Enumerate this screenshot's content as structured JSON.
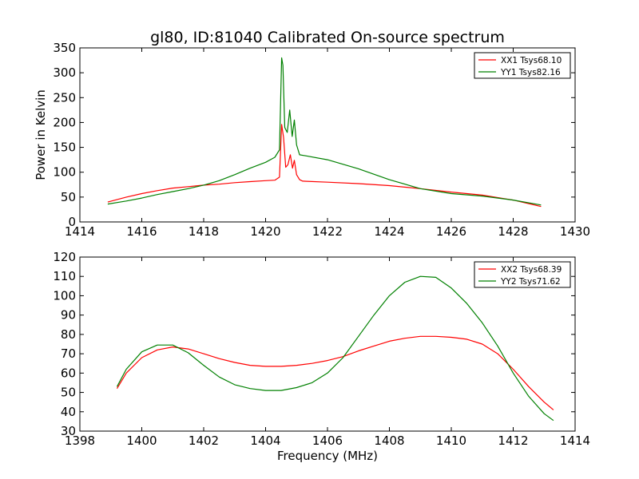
{
  "figure": {
    "title": "gl80, ID:81040 Calibrated On-source spectrum"
  },
  "colors": {
    "series_a": "#ff0000",
    "series_b": "#008000"
  },
  "chart_data": [
    {
      "type": "line",
      "title": "gl80, ID:81040 Calibrated On-source spectrum",
      "xlabel": "",
      "ylabel": "Power in Kelvin",
      "xlim": [
        1414,
        1430
      ],
      "ylim": [
        0,
        350
      ],
      "xticks": [
        1414,
        1416,
        1418,
        1420,
        1422,
        1424,
        1426,
        1428,
        1430
      ],
      "yticks": [
        0,
        50,
        100,
        150,
        200,
        250,
        300,
        350
      ],
      "grid": false,
      "legend": "top-right",
      "series": [
        {
          "name": "XX1 Tsys68.10",
          "color": "#ff0000",
          "x": [
            1414.9,
            1415.5,
            1416,
            1416.5,
            1417,
            1417.5,
            1418,
            1418.5,
            1419,
            1419.5,
            1420,
            1420.3,
            1420.45,
            1420.52,
            1420.58,
            1420.65,
            1420.72,
            1420.8,
            1420.87,
            1420.93,
            1421.0,
            1421.1,
            1421.2,
            1422,
            1423,
            1424,
            1425,
            1426,
            1427,
            1428,
            1428.9
          ],
          "y": [
            40,
            50,
            57,
            63,
            68,
            71,
            74,
            76,
            79,
            81,
            83,
            84,
            90,
            196,
            170,
            110,
            115,
            135,
            108,
            124,
            95,
            85,
            82,
            80,
            77,
            73,
            67,
            60,
            54,
            44,
            31
          ]
        },
        {
          "name": "YY1 Tsys82.16",
          "color": "#008000",
          "x": [
            1414.9,
            1415.5,
            1416,
            1416.5,
            1417,
            1417.5,
            1418,
            1418.5,
            1419,
            1419.5,
            1420,
            1420.3,
            1420.45,
            1420.52,
            1420.56,
            1420.62,
            1420.7,
            1420.78,
            1420.86,
            1420.93,
            1421.0,
            1421.1,
            1421.3,
            1422,
            1423,
            1424,
            1425,
            1426,
            1427,
            1428,
            1428.9
          ],
          "y": [
            36,
            42,
            48,
            55,
            61,
            67,
            74,
            83,
            95,
            108,
            120,
            130,
            145,
            330,
            315,
            190,
            180,
            225,
            172,
            205,
            155,
            135,
            133,
            125,
            107,
            85,
            67,
            57,
            52,
            44,
            34
          ]
        }
      ]
    },
    {
      "type": "line",
      "title": "",
      "xlabel": "Frequency (MHz)",
      "ylabel": "",
      "xlim": [
        1398,
        1414
      ],
      "ylim": [
        30,
        120
      ],
      "xticks": [
        1398,
        1400,
        1402,
        1404,
        1406,
        1408,
        1410,
        1412,
        1414
      ],
      "yticks": [
        30,
        40,
        50,
        60,
        70,
        80,
        90,
        100,
        110,
        120
      ],
      "grid": false,
      "legend": "top-right",
      "series": [
        {
          "name": "XX2 Tsys68.39",
          "color": "#ff0000",
          "x": [
            1399.2,
            1399.5,
            1400,
            1400.5,
            1401,
            1401.5,
            1402,
            1402.5,
            1403,
            1403.5,
            1404,
            1404.5,
            1405,
            1405.5,
            1406,
            1406.5,
            1407,
            1407.5,
            1408,
            1408.5,
            1409,
            1409.5,
            1410,
            1410.5,
            1411,
            1411.5,
            1412,
            1412.5,
            1413,
            1413.3
          ],
          "y": [
            52,
            60,
            68,
            72,
            73.5,
            72.5,
            70,
            67.5,
            65.5,
            64,
            63.5,
            63.5,
            64,
            65,
            66.5,
            68.5,
            71.5,
            74,
            76.5,
            78,
            79,
            79,
            78.5,
            77.5,
            75,
            70,
            62,
            53,
            45,
            41
          ]
        },
        {
          "name": "YY2 Tsys71.62",
          "color": "#008000",
          "x": [
            1399.2,
            1399.5,
            1400,
            1400.5,
            1401,
            1401.5,
            1402,
            1402.5,
            1403,
            1403.5,
            1404,
            1404.5,
            1405,
            1405.5,
            1406,
            1406.5,
            1407,
            1407.5,
            1408,
            1408.5,
            1409,
            1409.5,
            1410,
            1410.5,
            1411,
            1411.5,
            1412,
            1412.5,
            1413,
            1413.3
          ],
          "y": [
            53,
            62,
            71,
            74.5,
            74.5,
            70.5,
            64,
            58,
            54,
            52,
            51,
            51,
            52.5,
            55,
            60,
            68,
            79,
            90,
            100,
            107,
            110,
            109.5,
            104,
            96,
            86,
            74,
            60,
            48,
            39,
            35.5
          ]
        }
      ]
    }
  ]
}
